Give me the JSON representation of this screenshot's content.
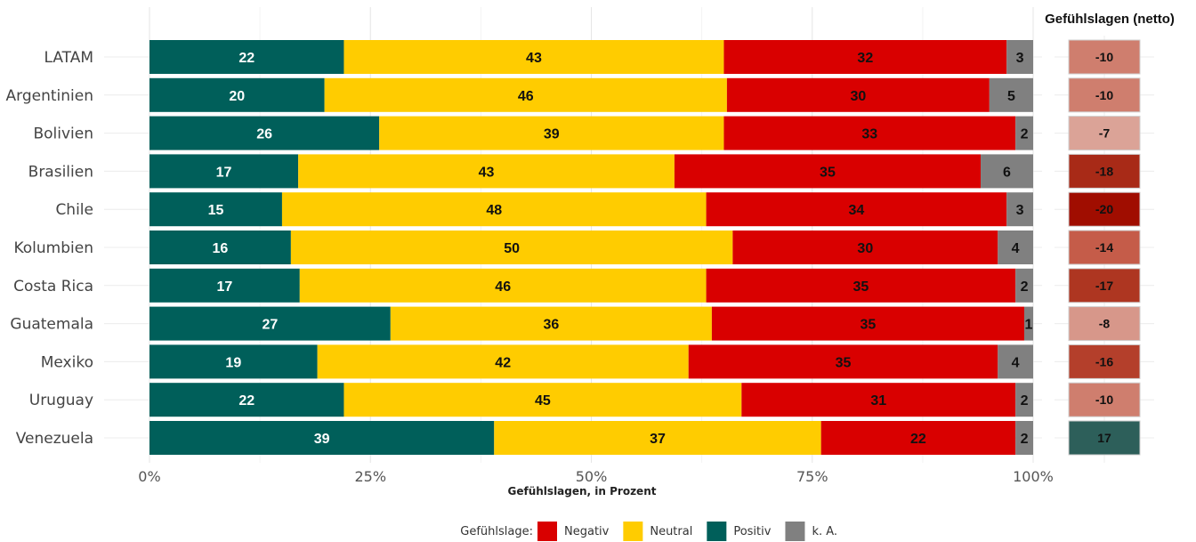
{
  "chart_data": {
    "type": "bar",
    "orientation": "horizontal",
    "stacked": "percent",
    "categories": [
      "LATAM",
      "Argentinien",
      "Bolivien",
      "Brasilien",
      "Chile",
      "Kolumbien",
      "Costa Rica",
      "Guatemala",
      "Mexiko",
      "Uruguay",
      "Venezuela"
    ],
    "series": [
      {
        "name": "Positiv",
        "color": "#005f5a",
        "label_color": "#ffffff",
        "values": [
          22,
          20,
          26,
          17,
          15,
          16,
          17,
          27,
          19,
          22,
          39
        ]
      },
      {
        "name": "Neutral",
        "color": "#ffcc00",
        "label_color": "#111111",
        "values": [
          43,
          46,
          39,
          43,
          48,
          50,
          46,
          36,
          42,
          45,
          37
        ]
      },
      {
        "name": "Negativ",
        "color": "#d90000",
        "label_color": "#111111",
        "values": [
          32,
          30,
          33,
          35,
          34,
          30,
          35,
          35,
          35,
          31,
          22
        ]
      },
      {
        "name": "k. A.",
        "color": "#808080",
        "label_color": "#111111",
        "values": [
          3,
          5,
          2,
          6,
          3,
          4,
          2,
          1,
          4,
          2,
          2
        ]
      }
    ],
    "xlabel": "Gefühlslagen, in Prozent",
    "xticks": [
      "0%",
      "25%",
      "50%",
      "75%",
      "100%"
    ],
    "xlim": [
      0,
      100
    ],
    "grid": true,
    "net": {
      "title": "Gefühlslagen (netto)",
      "values": [
        -10,
        -10,
        -7,
        -18,
        -20,
        -14,
        -17,
        -8,
        -16,
        -10,
        17
      ],
      "colors": [
        "#cf7e6e",
        "#cf7e6e",
        "#dba397",
        "#a82a17",
        "#a00d00",
        "#c55c49",
        "#ae3621",
        "#d7978a",
        "#b43f2b",
        "#cf7e6e",
        "#2d5f5a"
      ]
    },
    "legend": {
      "title": "Gefühlslage:",
      "position": "bottom",
      "items": [
        {
          "label": "Negativ",
          "color": "#d90000"
        },
        {
          "label": "Neutral",
          "color": "#ffcc00"
        },
        {
          "label": "Positiv",
          "color": "#005f5a"
        },
        {
          "label": "k. A.",
          "color": "#808080"
        }
      ]
    }
  }
}
